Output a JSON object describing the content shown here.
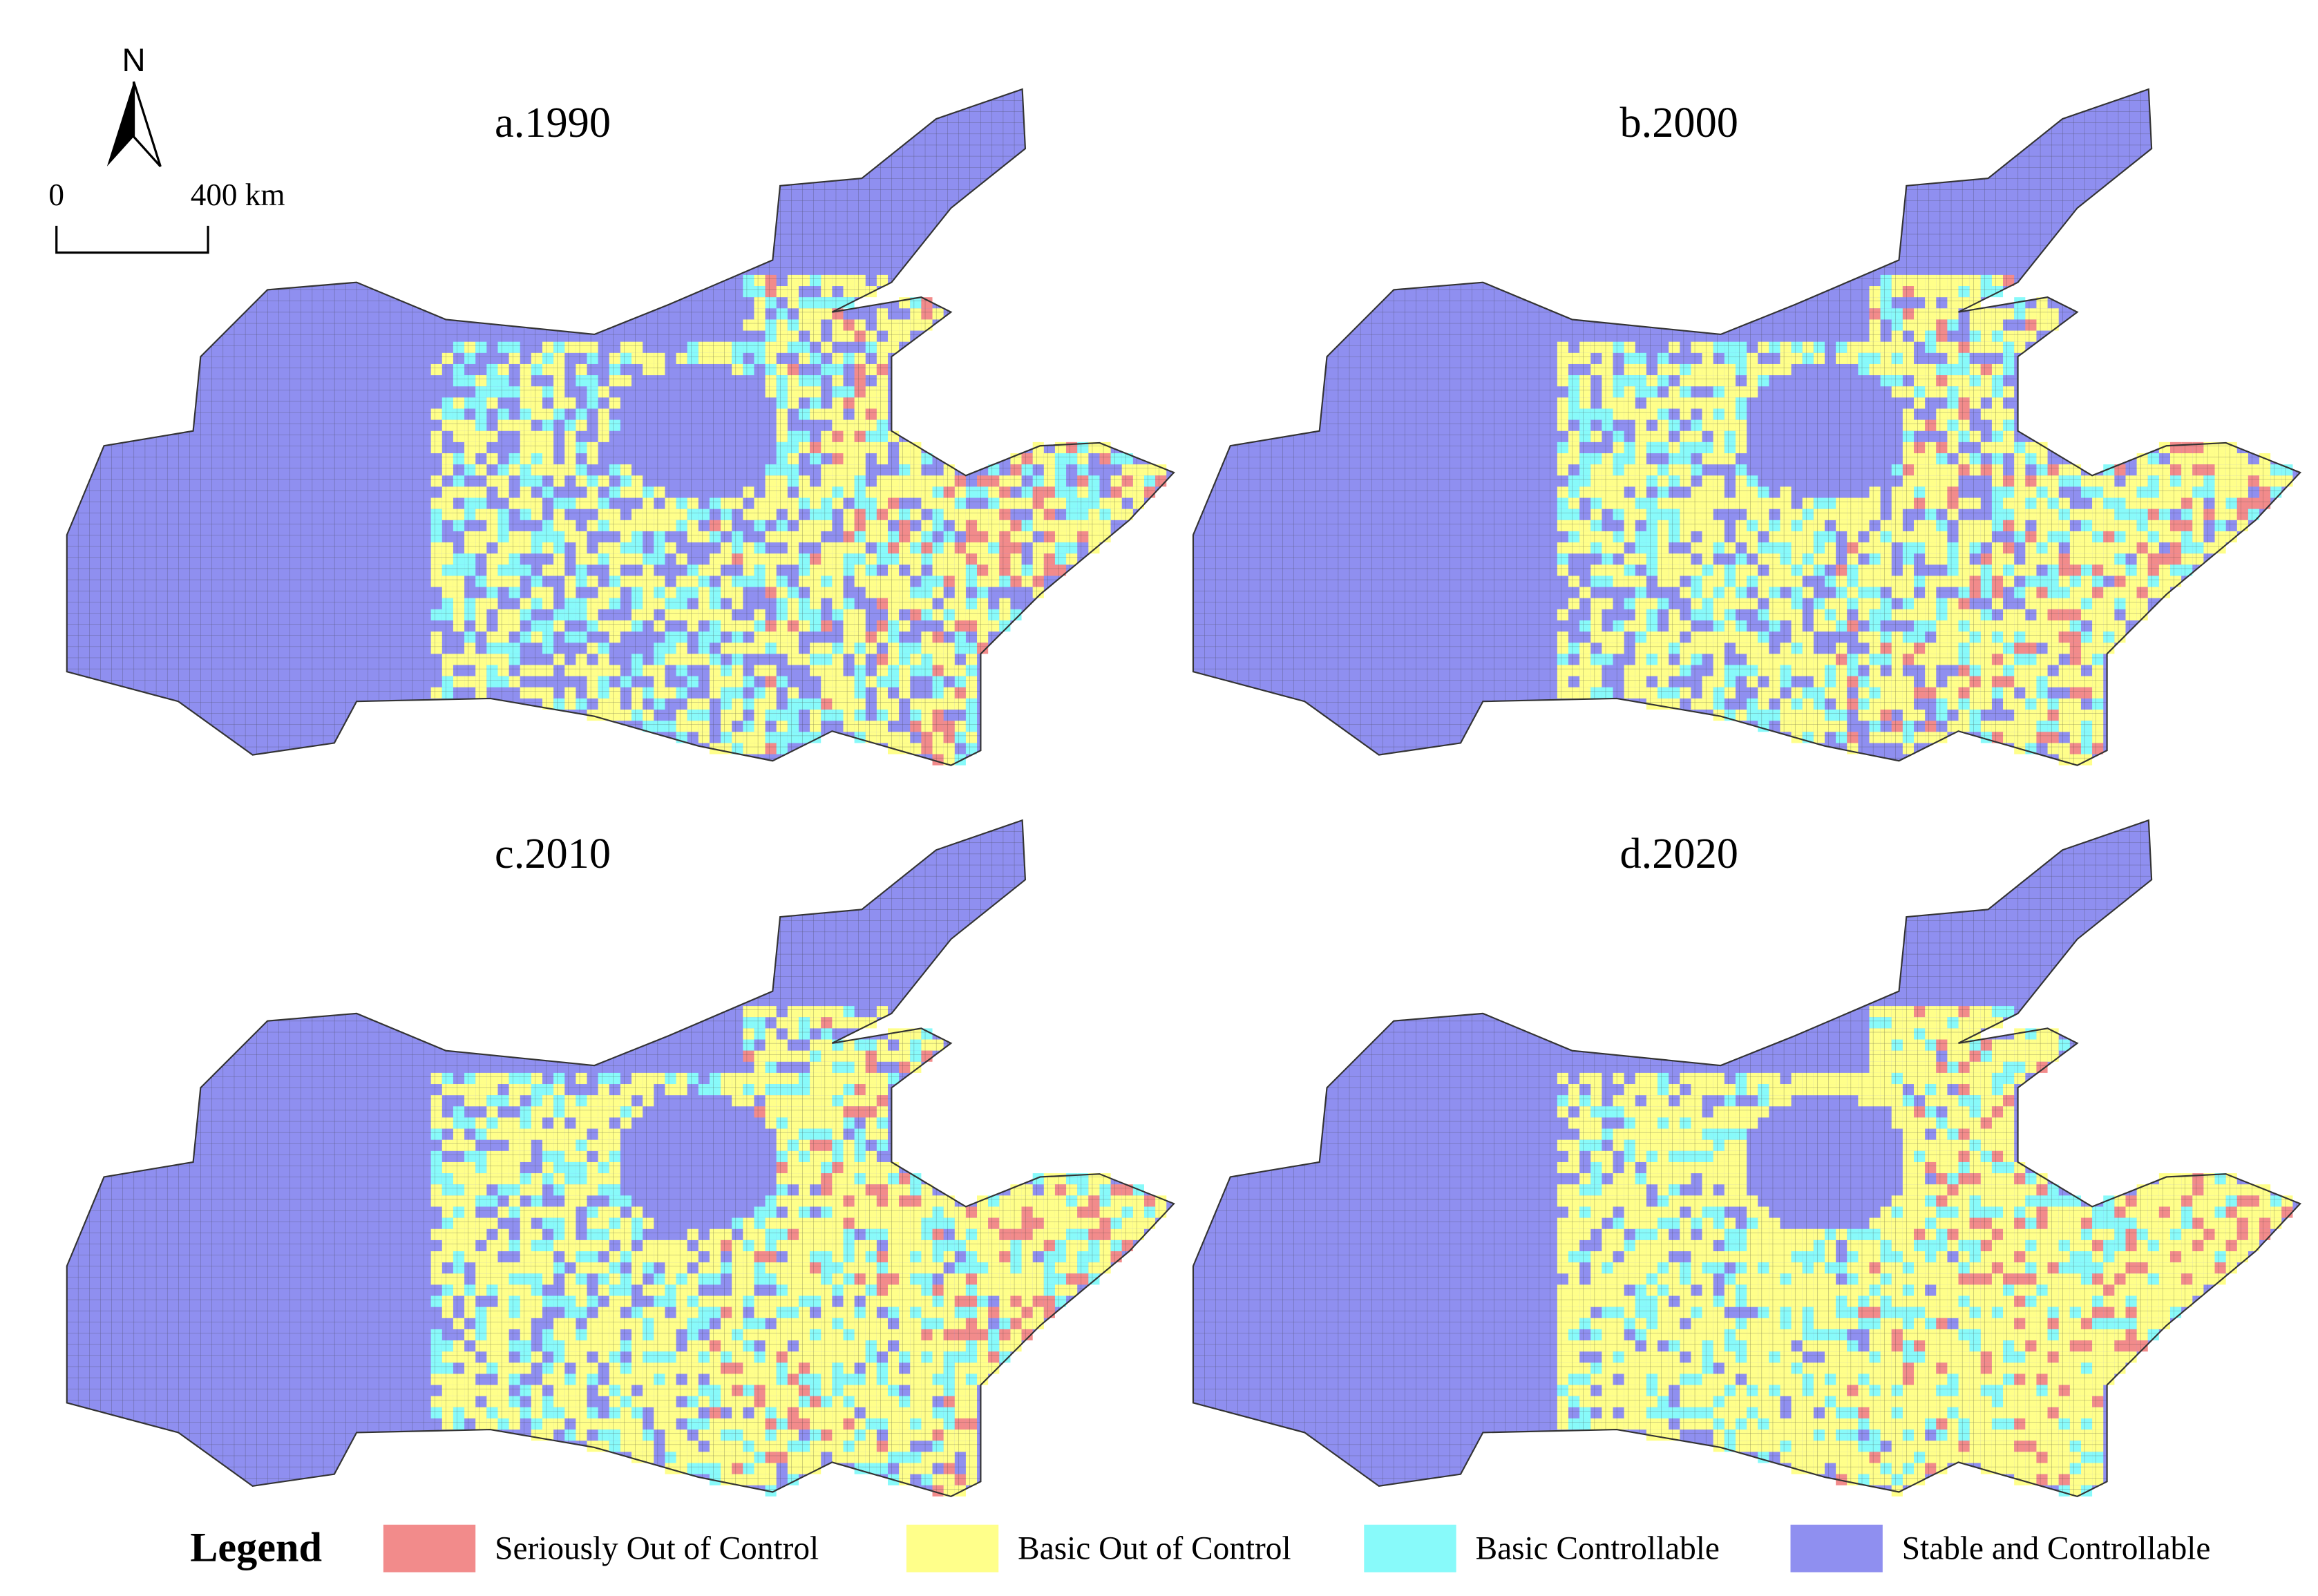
{
  "panels": [
    {
      "title": "a.1990"
    },
    {
      "title": "b.2000"
    },
    {
      "title": "c.2010"
    },
    {
      "title": "d.2020"
    }
  ],
  "north_arrow": {
    "label": "N"
  },
  "scale_bar": {
    "start": "0",
    "end": "400 km"
  },
  "legend": {
    "title": "Legend",
    "items": [
      {
        "label": "Seriously Out of Control",
        "color": "#f28b8b"
      },
      {
        "label": "Basic Out of Control",
        "color": "#ffff8a"
      },
      {
        "label": "Basic Controllable",
        "color": "#88fafa"
      },
      {
        "label": "Stable and Controllable",
        "color": "#8f8ff0"
      }
    ]
  }
}
